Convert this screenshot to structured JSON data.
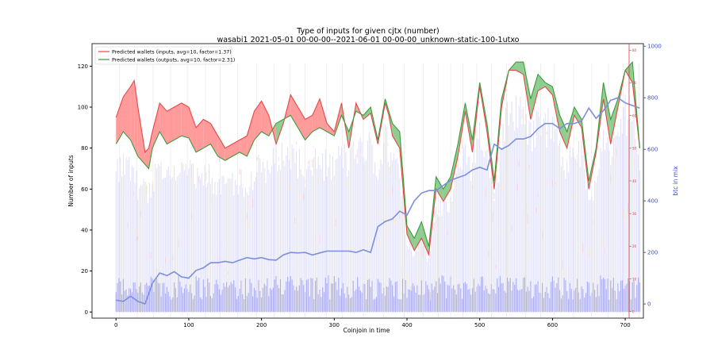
{
  "chart_data": {
    "type": "line",
    "title": "Type of inputs for given cjtx (number)",
    "subtitle": "wasabi1 2021-05-01 00-00-00--2021-06-01 00-00-00_unknown-static-100-1utxo",
    "xlabel": "Coinjoin in time",
    "ylabel": "Number of inputs",
    "y2label": "btc in mix",
    "xlim": [
      -33,
      725
    ],
    "ylim": [
      -3,
      131
    ],
    "y2lim": [
      -55,
      1010
    ],
    "y3lim": [
      -2,
      82
    ],
    "xticks": [
      "0",
      "100",
      "200",
      "300",
      "400",
      "500",
      "600",
      "700"
    ],
    "yticks": [
      "0",
      "20",
      "40",
      "60",
      "80",
      "100",
      "120"
    ],
    "y2ticks": [
      "0",
      "200",
      "400",
      "600",
      "800",
      "1000"
    ],
    "y3ticks": [
      "0",
      "10",
      "20",
      "30",
      "40",
      "50",
      "60",
      "70",
      "80"
    ],
    "legend_position": "top-left",
    "legend": [
      "Predicted wallets (inputs, avg=10, factor=1.37)",
      "Predicted wallets (outputs, avg=10, factor=2.31)"
    ],
    "colors": {
      "inputs": "#e8474a",
      "inputs_fill": "#ff8a8a",
      "outputs": "#3e9a3e",
      "outputs_fill": "#7dc47d",
      "btc": "#7b8fdc",
      "bars_back": "#d8d8f6",
      "bars_front": "#a7a7ee",
      "right_axis_blue": "#3a4fd0",
      "right_axis_red": "#d04040"
    },
    "series": [
      {
        "name": "Predicted wallets (inputs, avg=10, factor=1.37)",
        "x": [
          0,
          10,
          20,
          25,
          30,
          40,
          45,
          50,
          60,
          70,
          80,
          90,
          100,
          110,
          120,
          130,
          140,
          150,
          160,
          170,
          180,
          190,
          200,
          210,
          220,
          230,
          240,
          250,
          260,
          270,
          280,
          290,
          300,
          310,
          320,
          330,
          340,
          350,
          360,
          370,
          375,
          380,
          390,
          400,
          410,
          420,
          430,
          440,
          450,
          460,
          470,
          480,
          490,
          500,
          510,
          520,
          530,
          540,
          550,
          560,
          570,
          580,
          590,
          600,
          610,
          620,
          630,
          640,
          650,
          660,
          670,
          680,
          690,
          700,
          710,
          720
        ],
        "values": [
          95,
          105,
          110,
          113,
          100,
          78,
          80,
          88,
          102,
          98,
          100,
          102,
          100,
          90,
          94,
          92,
          86,
          80,
          82,
          84,
          86,
          98,
          103,
          96,
          82,
          92,
          106,
          100,
          94,
          96,
          104,
          92,
          88,
          102,
          80,
          102,
          94,
          97,
          82,
          102,
          96,
          86,
          80,
          38,
          30,
          36,
          28,
          60,
          54,
          60,
          76,
          98,
          78,
          110,
          88,
          60,
          100,
          118,
          118,
          116,
          94,
          108,
          110,
          106,
          88,
          80,
          96,
          90,
          60,
          78,
          104,
          82,
          100,
          118,
          112,
          80
        ]
      },
      {
        "name": "Predicted wallets (outputs, avg=10, factor=2.31)",
        "x": [
          0,
          10,
          20,
          25,
          30,
          40,
          45,
          50,
          60,
          70,
          80,
          90,
          100,
          110,
          120,
          130,
          140,
          150,
          160,
          170,
          180,
          190,
          200,
          210,
          220,
          230,
          240,
          250,
          260,
          270,
          280,
          290,
          300,
          310,
          320,
          330,
          340,
          350,
          360,
          370,
          375,
          380,
          390,
          400,
          410,
          420,
          430,
          440,
          450,
          460,
          470,
          480,
          490,
          500,
          510,
          520,
          530,
          540,
          550,
          560,
          570,
          580,
          590,
          600,
          610,
          620,
          630,
          640,
          650,
          660,
          670,
          680,
          690,
          700,
          710,
          720
        ],
        "values": [
          82,
          88,
          84,
          80,
          76,
          72,
          70,
          80,
          88,
          82,
          84,
          86,
          85,
          78,
          80,
          82,
          76,
          74,
          76,
          78,
          76,
          84,
          88,
          86,
          92,
          94,
          96,
          90,
          84,
          88,
          90,
          88,
          86,
          96,
          88,
          98,
          96,
          100,
          84,
          104,
          98,
          92,
          88,
          42,
          36,
          44,
          32,
          66,
          60,
          66,
          82,
          102,
          84,
          112,
          92,
          64,
          104,
          118,
          122,
          122,
          104,
          116,
          112,
          110,
          96,
          88,
          100,
          94,
          64,
          80,
          112,
          94,
          104,
          118,
          122,
          80
        ]
      },
      {
        "name": "",
        "axis": "right",
        "x": [
          0,
          10,
          20,
          30,
          40,
          50,
          60,
          70,
          80,
          90,
          100,
          110,
          120,
          130,
          140,
          150,
          160,
          170,
          180,
          190,
          200,
          210,
          220,
          230,
          240,
          250,
          260,
          270,
          280,
          290,
          300,
          310,
          320,
          330,
          340,
          350,
          360,
          370,
          380,
          390,
          400,
          410,
          420,
          430,
          440,
          450,
          460,
          470,
          480,
          490,
          500,
          510,
          520,
          530,
          540,
          550,
          560,
          570,
          580,
          590,
          600,
          610,
          620,
          630,
          640,
          650,
          660,
          670,
          680,
          690,
          700,
          710,
          720
        ],
        "values": [
          15,
          10,
          30,
          10,
          0,
          80,
          120,
          110,
          125,
          105,
          100,
          130,
          140,
          160,
          160,
          165,
          160,
          170,
          180,
          175,
          180,
          172,
          170,
          190,
          200,
          198,
          200,
          190,
          198,
          205,
          205,
          205,
          205,
          200,
          210,
          200,
          300,
          320,
          330,
          360,
          345,
          400,
          430,
          440,
          440,
          460,
          480,
          490,
          500,
          520,
          530,
          520,
          620,
          600,
          615,
          640,
          640,
          650,
          680,
          700,
          700,
          680,
          700,
          700,
          710,
          760,
          720,
          750,
          790,
          800,
          780,
          770,
          760
        ]
      }
    ]
  }
}
